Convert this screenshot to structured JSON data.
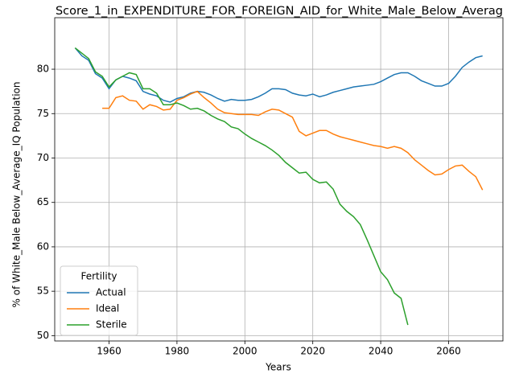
{
  "chart_data": {
    "type": "line",
    "title": "Score_1_in_EXPENDITURE_FOR_FOREIGN_AID_for_White_Male_Below_Averag",
    "xlabel": "Years",
    "ylabel": "% of White_Male Below_Average_IQ Population",
    "legend_title": "Fertility",
    "legend_loc": "lower left",
    "grid": true,
    "x": [
      1950,
      1952,
      1954,
      1956,
      1958,
      1960,
      1962,
      1964,
      1966,
      1968,
      1970,
      1972,
      1974,
      1976,
      1978,
      1980,
      1982,
      1984,
      1986,
      1988,
      1990,
      1992,
      1994,
      1996,
      1998,
      2000,
      2002,
      2004,
      2006,
      2008,
      2010,
      2012,
      2014,
      2016,
      2018,
      2020,
      2022,
      2024,
      2026,
      2028,
      2030,
      2032,
      2034,
      2036,
      2038,
      2040,
      2042,
      2044,
      2046,
      2048,
      2050,
      2052,
      2054,
      2056,
      2058,
      2060,
      2062,
      2064,
      2066,
      2068,
      2070
    ],
    "series": [
      {
        "name": "Actual",
        "color": "#1f77b4",
        "values": [
          82.4,
          81.5,
          81.0,
          79.5,
          79.0,
          77.8,
          78.8,
          79.2,
          79.0,
          78.7,
          77.5,
          77.2,
          77.0,
          76.5,
          76.3,
          76.7,
          76.9,
          77.3,
          77.5,
          77.4,
          77.1,
          76.7,
          76.4,
          76.6,
          76.5,
          76.5,
          76.6,
          76.9,
          77.3,
          77.8,
          77.8,
          77.7,
          77.3,
          77.1,
          77.0,
          77.2,
          76.9,
          77.1,
          77.4,
          77.6,
          77.8,
          78.0,
          78.1,
          78.2,
          78.3,
          78.6,
          79.0,
          79.4,
          79.6,
          79.6,
          79.2,
          78.7,
          78.4,
          78.1,
          78.1,
          78.4,
          79.2,
          80.2,
          80.8,
          81.3,
          81.5
        ]
      },
      {
        "name": "Ideal",
        "color": "#ff7f0e",
        "values": [
          null,
          null,
          null,
          null,
          75.6,
          75.6,
          76.8,
          77.0,
          76.5,
          76.4,
          75.5,
          76.0,
          75.8,
          75.4,
          75.5,
          76.5,
          76.8,
          77.2,
          77.5,
          76.8,
          76.2,
          75.5,
          75.1,
          75.0,
          74.9,
          74.9,
          74.9,
          74.8,
          75.2,
          75.5,
          75.4,
          75.0,
          74.6,
          73.0,
          72.5,
          72.8,
          73.1,
          73.1,
          72.7,
          72.4,
          72.2,
          72.0,
          71.8,
          71.6,
          71.4,
          71.3,
          71.1,
          71.3,
          71.1,
          70.6,
          69.8,
          69.2,
          68.6,
          68.1,
          68.2,
          68.7,
          69.1,
          69.2,
          68.5,
          67.9,
          66.4
        ]
      },
      {
        "name": "Sterile",
        "color": "#2ca02c",
        "values": [
          82.4,
          81.8,
          81.2,
          79.7,
          79.2,
          78.0,
          78.8,
          79.2,
          79.6,
          79.4,
          77.8,
          77.8,
          77.3,
          76.0,
          76.0,
          76.2,
          75.9,
          75.5,
          75.6,
          75.3,
          74.8,
          74.4,
          74.1,
          73.5,
          73.3,
          72.7,
          72.2,
          71.8,
          71.4,
          70.9,
          70.3,
          69.5,
          68.9,
          68.3,
          68.4,
          67.6,
          67.2,
          67.3,
          66.5,
          64.8,
          64.0,
          63.4,
          62.5,
          60.8,
          59.0,
          57.2,
          56.3,
          54.8,
          54.2,
          51.2,
          null,
          null,
          null,
          null,
          null,
          null,
          null,
          null,
          null,
          null,
          null
        ]
      }
    ],
    "xlim": [
      1944,
      2076
    ],
    "xticks": [
      1960,
      1980,
      2000,
      2020,
      2040,
      2060
    ],
    "ylim": [
      49.4,
      85.8
    ],
    "yticks": [
      50,
      55,
      60,
      65,
      70,
      75,
      80
    ]
  }
}
